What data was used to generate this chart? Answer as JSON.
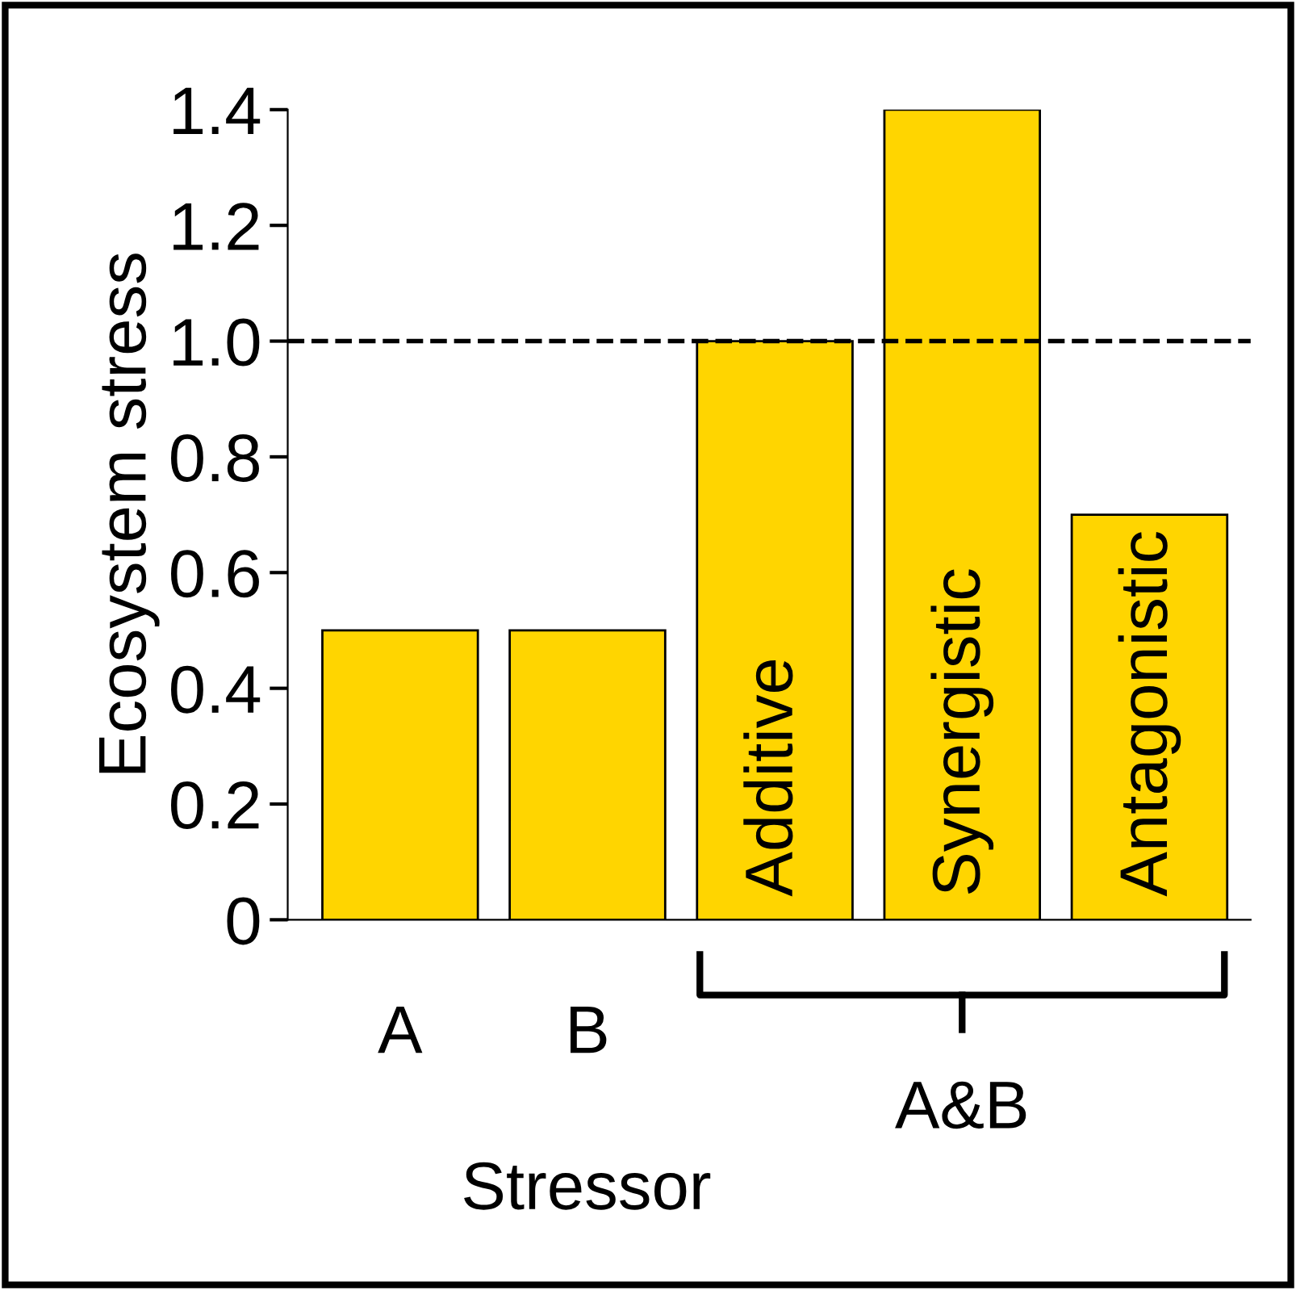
{
  "chart_data": {
    "type": "bar",
    "xlabel": "Stressor",
    "ylabel": "Ecosystem stress",
    "categories": [
      "A",
      "B",
      "Additive",
      "Synergistic",
      "Antagonistic"
    ],
    "values": [
      0.5,
      0.5,
      1.0,
      1.4,
      0.7
    ],
    "color": "#ffd500",
    "ylim": [
      0,
      1.4
    ],
    "yticks": [
      0,
      0.2,
      0.4,
      0.6,
      0.8,
      {
        "value": 1.0,
        "label": "1.0"
      },
      1.2,
      1.4
    ],
    "ref_lines": [
      {
        "axis": "y",
        "value": 1.0,
        "color": "#000000",
        "line_style": "dashed"
      }
    ],
    "annotations": [
      "A&B"
    ],
    "grid": false,
    "legend": false
  }
}
